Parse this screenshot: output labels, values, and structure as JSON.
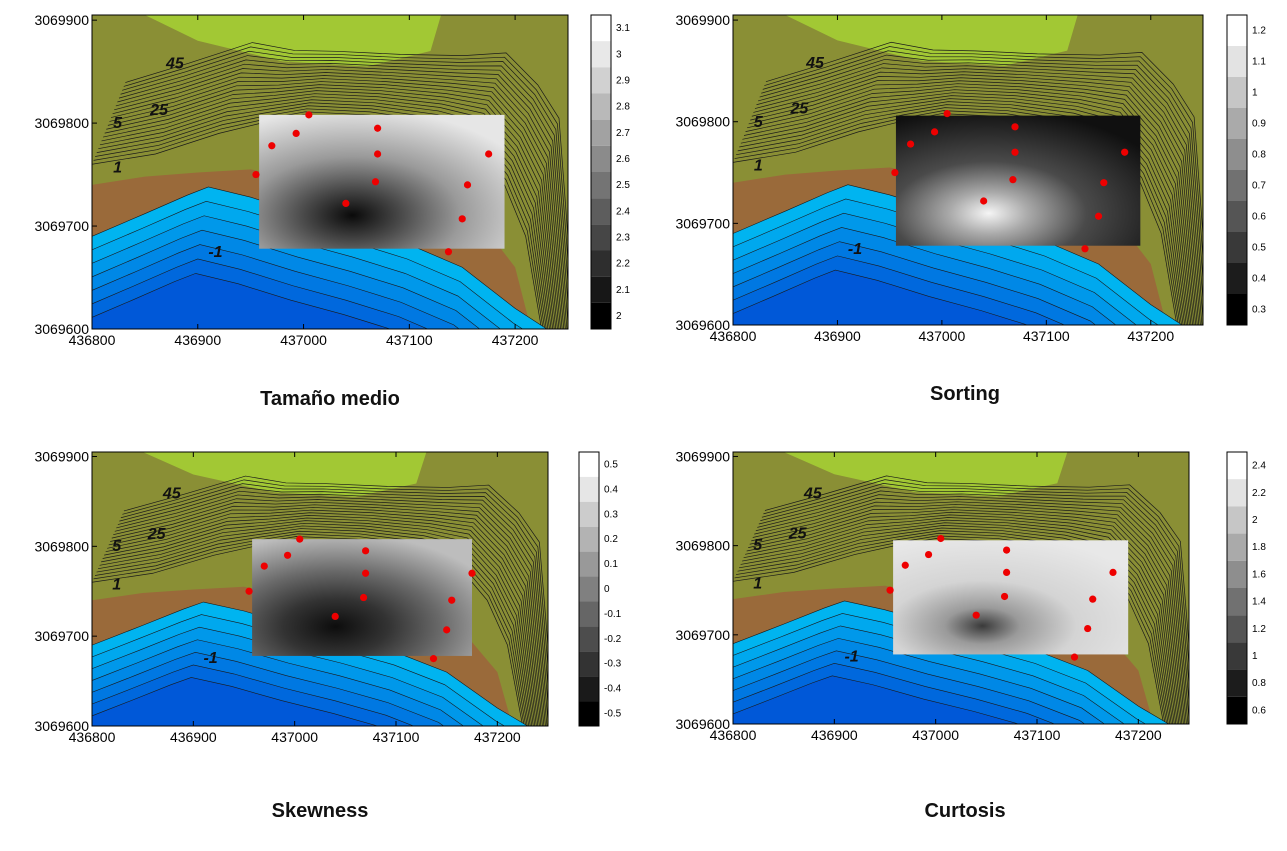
{
  "axes": {
    "y_ticks": [
      "3069900",
      "3069800",
      "3069700",
      "3069600"
    ],
    "x_ticks": [
      "436800",
      "436900",
      "437000",
      "437100",
      "437200"
    ]
  },
  "contour_labels": [
    "45",
    "25",
    "5",
    "1",
    "-1"
  ],
  "panels": [
    {
      "id": "tamano-medio",
      "title": "Tamaño medio",
      "scale_ticks": [
        "3.1",
        "3",
        "2.9",
        "2.8",
        "2.7",
        "2.6",
        "2.5",
        "2.4",
        "2.3",
        "2.2",
        "2.1",
        "2"
      ]
    },
    {
      "id": "sorting",
      "title": "Sorting",
      "scale_ticks": [
        "1.2",
        "1.1",
        "1",
        "0.9",
        "0.8",
        "0.7",
        "0.6",
        "0.5",
        "0.4",
        "0.3"
      ]
    },
    {
      "id": "skewness",
      "title": "Skewness",
      "scale_ticks": [
        "0.5",
        "0.4",
        "0.3",
        "0.2",
        "0.1",
        "0",
        "-0.1",
        "-0.2",
        "-0.3",
        "-0.4",
        "-0.5"
      ]
    },
    {
      "id": "curtosis",
      "title": "Curtosis",
      "scale_ticks": [
        "2.4",
        "2.2",
        "2",
        "1.8",
        "1.6",
        "1.4",
        "1.2",
        "1",
        "0.8",
        "0.6"
      ]
    }
  ],
  "sample_points": [
    [
      437005,
      3069808
    ],
    [
      436993,
      3069790
    ],
    [
      436970,
      3069778
    ],
    [
      436955,
      3069750
    ],
    [
      437070,
      3069795
    ],
    [
      437070,
      3069770
    ],
    [
      437068,
      3069743
    ],
    [
      437040,
      3069722
    ],
    [
      437175,
      3069770
    ],
    [
      437155,
      3069740
    ],
    [
      437150,
      3069707
    ],
    [
      437137,
      3069675
    ]
  ],
  "colors": {
    "land_high": "#a6d234",
    "land_mid": "#8a8f35",
    "land_low": "#7a6a2e",
    "beach": "#9a6a3a",
    "water_light": "#00aaee",
    "water_deep": "#0066dd",
    "samples": "#ee0000"
  }
}
